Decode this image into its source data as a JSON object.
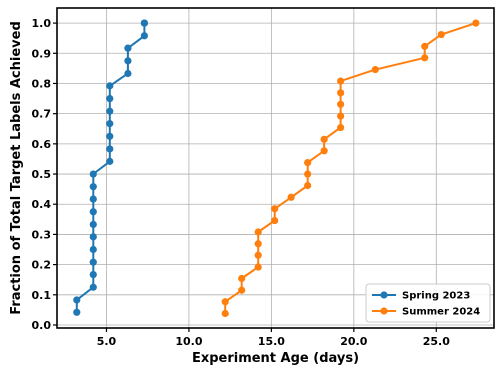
{
  "chart_data": {
    "type": "line",
    "xlabel": "Experiment Age (days)",
    "ylabel": "Fraction of Total Target Labels Achieved",
    "xlim": [
      2.0,
      28.5
    ],
    "ylim": [
      -0.01,
      1.05
    ],
    "xticks": [
      5.0,
      10.0,
      15.0,
      20.0,
      25.0
    ],
    "xtick_labels": [
      "5.0",
      "10.0",
      "15.0",
      "20.0",
      "25.0"
    ],
    "yticks": [
      0.0,
      0.1,
      0.2,
      0.3,
      0.4,
      0.5,
      0.6,
      0.7,
      0.8,
      0.9,
      1.0
    ],
    "ytick_labels": [
      "0.0",
      "0.1",
      "0.2",
      "0.3",
      "0.4",
      "0.5",
      "0.6",
      "0.7",
      "0.8",
      "0.9",
      "1.0"
    ],
    "grid": true,
    "legend_position": "lower-right",
    "series": [
      {
        "name": "Spring 2023",
        "color": "#1f77b4",
        "x": [
          3.2,
          3.2,
          4.2,
          4.2,
          4.2,
          4.2,
          4.2,
          4.2,
          4.2,
          4.2,
          4.2,
          4.2,
          5.2,
          5.2,
          5.2,
          5.2,
          5.2,
          5.2,
          5.2,
          6.3,
          6.3,
          6.3,
          7.3,
          7.3,
          7.3
        ],
        "y": [
          0.042,
          0.083,
          0.125,
          0.167,
          0.208,
          0.25,
          0.292,
          0.333,
          0.375,
          0.417,
          0.458,
          0.5,
          0.542,
          0.583,
          0.625,
          0.667,
          0.708,
          0.75,
          0.792,
          0.833,
          0.875,
          0.917,
          0.958,
          1.0,
          1.0
        ]
      },
      {
        "name": "Summer 2024",
        "color": "#ff7f0e",
        "x": [
          12.2,
          12.2,
          13.2,
          13.2,
          14.2,
          14.2,
          14.2,
          14.2,
          15.2,
          15.2,
          16.2,
          17.2,
          17.2,
          17.2,
          18.2,
          18.2,
          19.2,
          19.2,
          19.2,
          19.2,
          19.2,
          21.3,
          24.3,
          24.3,
          25.3,
          27.4
        ],
        "y": [
          0.038,
          0.077,
          0.115,
          0.154,
          0.192,
          0.231,
          0.269,
          0.308,
          0.346,
          0.385,
          0.423,
          0.462,
          0.5,
          0.538,
          0.577,
          0.615,
          0.654,
          0.692,
          0.731,
          0.769,
          0.808,
          0.846,
          0.885,
          0.923,
          0.962,
          1.0
        ]
      }
    ]
  }
}
